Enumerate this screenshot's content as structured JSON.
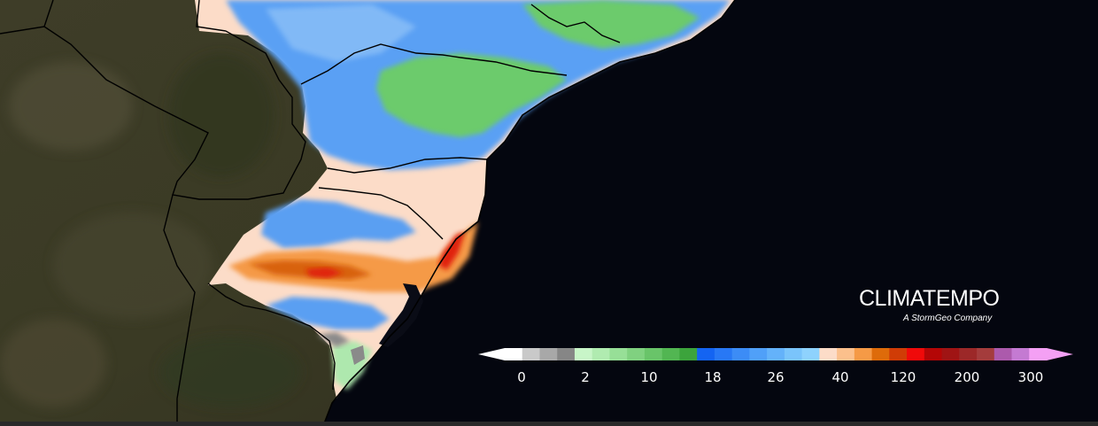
{
  "brand": {
    "name": "CLIMATEMPO",
    "tagline": "A StormGeo Company"
  },
  "legend": {
    "ticks": [
      "0",
      "2",
      "10",
      "18",
      "26",
      "40",
      "120",
      "200",
      "300"
    ],
    "colors": [
      "#ffffff",
      "#c9c9c9",
      "#a8a8a8",
      "#868686",
      "#c8f5c8",
      "#b0ebb0",
      "#97df97",
      "#80d180",
      "#69c469",
      "#52b652",
      "#3ca43c",
      "#1464f2",
      "#2878f5",
      "#3c8cf6",
      "#50a0f8",
      "#64b2fa",
      "#7ac4fb",
      "#8ed2fd",
      "#fcdcc8",
      "#fbc08c",
      "#f59a46",
      "#de6b0a",
      "#d03c06",
      "#f00a0a",
      "#b40606",
      "#a01414",
      "#9c2828",
      "#a43c3c",
      "#ac5aac",
      "#c47ad2",
      "#f4a0f4"
    ],
    "under_color": "#ffffff",
    "over_color": "#f4a0f4"
  },
  "map_colors": {
    "ocean": "#04060f",
    "land": "#3a3a24",
    "borders": "#000000",
    "rain_low": "#a8d6fb",
    "rain_mid": "#4a90f0",
    "rain_green": "#6ccb6c",
    "rain_peach": "#fcdcc8",
    "rain_orange": "#f59a46",
    "rain_red": "#e0200a"
  }
}
